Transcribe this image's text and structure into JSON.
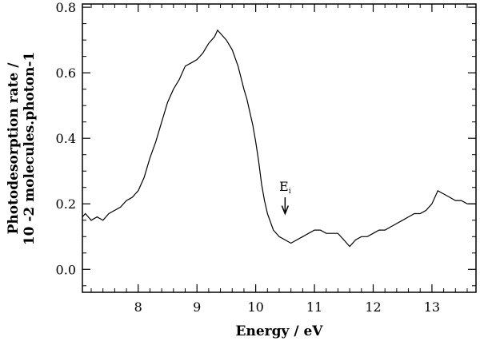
{
  "chart_data": {
    "type": "line",
    "title": "",
    "xlabel": "Energy / eV",
    "ylabel_line1": "Photodesorption rate /",
    "ylabel_line2": "10 -2 molecules.photon-1",
    "xlim": [
      7.05,
      13.75
    ],
    "ylim": [
      -0.07,
      0.81
    ],
    "x_ticks": [
      8,
      9,
      10,
      11,
      12,
      13
    ],
    "x_tick_labels": [
      "8",
      "9",
      "10",
      "11",
      "12",
      "13"
    ],
    "y_ticks": [
      0.0,
      0.2,
      0.4,
      0.6,
      0.8
    ],
    "y_tick_labels": [
      "0.0",
      "0.2",
      "0.4",
      "0.6",
      "0.8"
    ],
    "grid": false,
    "legend": "none",
    "annotation": {
      "text": "E",
      "subscript": "i",
      "x": 10.5,
      "arrow_from_y": 0.22,
      "arrow_to_y": 0.17
    },
    "series": [
      {
        "color": "#000000",
        "x": [
          7.05,
          7.1,
          7.2,
          7.3,
          7.4,
          7.5,
          7.6,
          7.7,
          7.8,
          7.9,
          8.0,
          8.1,
          8.2,
          8.3,
          8.4,
          8.5,
          8.6,
          8.7,
          8.8,
          8.9,
          9.0,
          9.1,
          9.2,
          9.3,
          9.35,
          9.4,
          9.45,
          9.5,
          9.6,
          9.7,
          9.8,
          9.85,
          9.9,
          9.95,
          10.0,
          10.05,
          10.1,
          10.15,
          10.2,
          10.3,
          10.4,
          10.5,
          10.6,
          10.7,
          10.8,
          10.9,
          11.0,
          11.1,
          11.2,
          11.3,
          11.4,
          11.5,
          11.6,
          11.7,
          11.8,
          11.9,
          12.0,
          12.1,
          12.2,
          12.3,
          12.4,
          12.5,
          12.6,
          12.7,
          12.8,
          12.9,
          13.0,
          13.1,
          13.2,
          13.3,
          13.4,
          13.5,
          13.6,
          13.75
        ],
        "y": [
          0.16,
          0.17,
          0.15,
          0.16,
          0.15,
          0.17,
          0.18,
          0.19,
          0.21,
          0.22,
          0.24,
          0.28,
          0.34,
          0.39,
          0.45,
          0.51,
          0.55,
          0.58,
          0.62,
          0.63,
          0.64,
          0.66,
          0.69,
          0.71,
          0.73,
          0.72,
          0.71,
          0.7,
          0.67,
          0.62,
          0.55,
          0.52,
          0.48,
          0.44,
          0.39,
          0.33,
          0.26,
          0.21,
          0.17,
          0.12,
          0.1,
          0.09,
          0.08,
          0.09,
          0.1,
          0.11,
          0.12,
          0.12,
          0.11,
          0.11,
          0.11,
          0.09,
          0.07,
          0.09,
          0.1,
          0.1,
          0.11,
          0.12,
          0.12,
          0.13,
          0.14,
          0.15,
          0.16,
          0.17,
          0.17,
          0.18,
          0.2,
          0.24,
          0.23,
          0.22,
          0.21,
          0.21,
          0.2,
          0.2
        ]
      }
    ]
  }
}
